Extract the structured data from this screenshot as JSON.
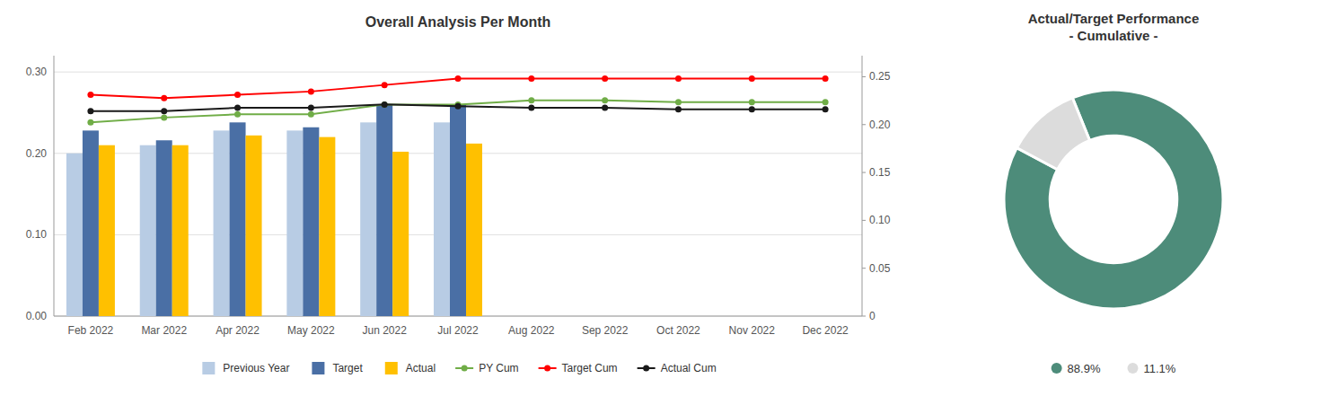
{
  "chart_data": [
    {
      "type": "bar",
      "title": "Overall Analysis Per Month",
      "categories": [
        "Feb 2022",
        "Mar 2022",
        "Apr 2022",
        "May 2022",
        "Jun 2022",
        "Jul 2022",
        "Aug 2022",
        "Sep 2022",
        "Oct 2022",
        "Nov 2022",
        "Dec 2022"
      ],
      "series": [
        {
          "name": "Previous Year",
          "color": "#b8cce4",
          "values": [
            0.2,
            0.21,
            0.228,
            0.228,
            0.238,
            0.238,
            null,
            null,
            null,
            null,
            null
          ]
        },
        {
          "name": "Target",
          "color": "#4a6fa5",
          "values": [
            0.228,
            0.216,
            0.238,
            0.232,
            0.26,
            0.26,
            null,
            null,
            null,
            null,
            null
          ]
        },
        {
          "name": "Actual",
          "color": "#ffc000",
          "values": [
            0.21,
            0.21,
            0.222,
            0.22,
            0.202,
            0.212,
            null,
            null,
            null,
            null,
            null
          ]
        },
        {
          "name": "PY Cum",
          "type": "line",
          "marker": "circle",
          "color": "#70ad47",
          "values": [
            0.238,
            0.244,
            0.248,
            0.248,
            0.26,
            0.26,
            0.265,
            0.265,
            0.263,
            0.263,
            0.263
          ]
        },
        {
          "name": "Target Cum",
          "type": "line",
          "marker": "circle",
          "color": "#ff0000",
          "values": [
            0.272,
            0.268,
            0.272,
            0.276,
            0.284,
            0.292,
            0.292,
            0.292,
            0.292,
            0.292,
            0.292
          ]
        },
        {
          "name": "Actual Cum",
          "type": "line",
          "marker": "circle",
          "color": "#1a1a1a",
          "values": [
            0.252,
            0.252,
            0.256,
            0.256,
            0.26,
            0.258,
            0.256,
            0.256,
            0.254,
            0.254,
            0.254
          ]
        }
      ],
      "ylim": [
        0.0,
        0.32
      ],
      "yticks": [
        {
          "value": 0.0,
          "label": "0.00"
        },
        {
          "value": 0.1,
          "label": "0.10"
        },
        {
          "value": 0.2,
          "label": "0.20"
        },
        {
          "value": 0.3,
          "label": "0.30"
        }
      ],
      "y2lim": [
        0.0,
        0.272
      ],
      "y2ticks": [
        0,
        0.05,
        {
          "value": 0.1,
          "label": "0.10"
        },
        0.15,
        {
          "value": 0.2,
          "label": "0.20"
        },
        0.25
      ],
      "grid": true,
      "legend": "bottom"
    },
    {
      "type": "donut",
      "title": "Actual/Target Performance\n- Cumulative -",
      "values": [
        88.9,
        11.1
      ],
      "value_labels": [
        "88.9%",
        "11.1%"
      ],
      "colors": [
        "#4d8c7a",
        "#dcdcdc"
      ]
    }
  ]
}
